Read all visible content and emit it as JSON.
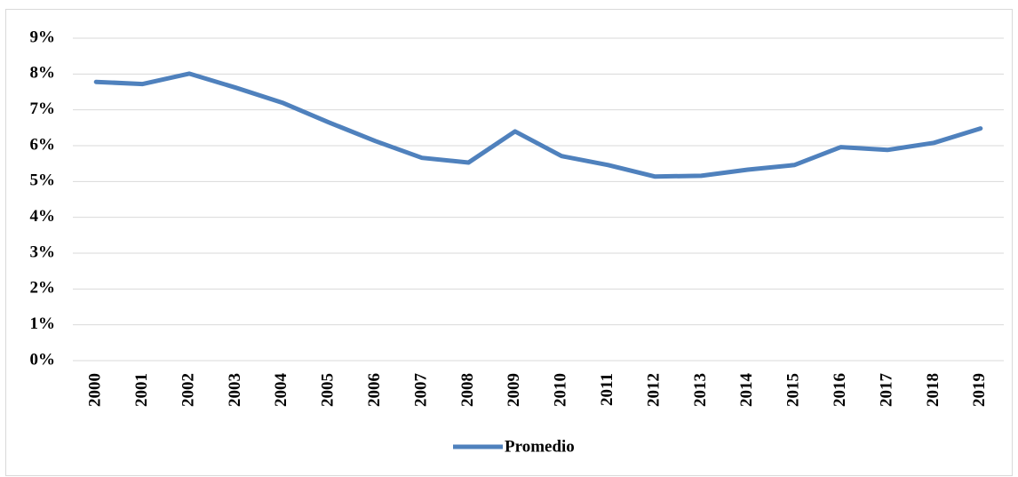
{
  "chart_data": {
    "type": "line",
    "categories": [
      "2000",
      "2001",
      "2002",
      "2003",
      "2004",
      "2005",
      "2006",
      "2007",
      "2008",
      "2009",
      "2010",
      "2011",
      "2012",
      "2013",
      "2014",
      "2015",
      "2016",
      "2017",
      "2018",
      "2019"
    ],
    "series": [
      {
        "name": "Promedio",
        "color": "#4f81bd",
        "values": [
          7.78,
          7.72,
          8.01,
          7.62,
          7.2,
          6.65,
          6.13,
          5.66,
          5.53,
          6.4,
          5.71,
          5.46,
          5.14,
          5.16,
          5.33,
          5.46,
          5.96,
          5.88,
          6.08,
          6.48
        ]
      }
    ],
    "ylim": [
      0,
      9
    ],
    "yticks": [
      {
        "value": 0,
        "label": "0%"
      },
      {
        "value": 1,
        "label": "1%"
      },
      {
        "value": 2,
        "label": "2%"
      },
      {
        "value": 3,
        "label": "3%"
      },
      {
        "value": 4,
        "label": "4%"
      },
      {
        "value": 5,
        "label": "5%"
      },
      {
        "value": 6,
        "label": "6%"
      },
      {
        "value": 7,
        "label": "7%"
      },
      {
        "value": 8,
        "label": "8%"
      },
      {
        "value": 9,
        "label": "9%"
      }
    ],
    "grid": true,
    "legend": "bottom"
  }
}
